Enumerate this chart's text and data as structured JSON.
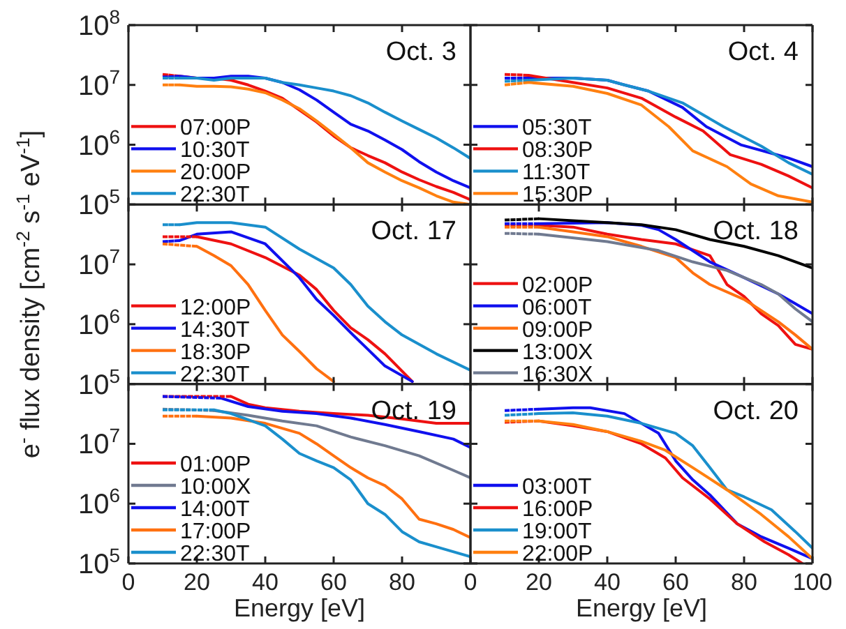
{
  "chart_data": [
    {
      "type": "line",
      "title": "Oct. 3",
      "log": "y",
      "xlim": [
        0,
        100
      ],
      "ylim": [
        100000,
        100000000
      ],
      "xticks": [
        0,
        20,
        40,
        60,
        80
      ],
      "yticks": [
        {
          "value": 100000,
          "label": "10$^{5}$"
        },
        {
          "value": 1000000,
          "label": "10$^{6}$"
        },
        {
          "value": 10000000,
          "label": "10$^{7}$"
        },
        {
          "value": 100000000,
          "label": "10$^{8}$"
        }
      ],
      "tick_labels": "y",
      "legend": "bottom left",
      "line_style": "solid",
      "series": [
        {
          "name": "07:00P",
          "color": "#ee1111",
          "x": [
            15,
            20,
            25,
            30,
            35,
            40,
            45,
            50,
            55,
            60,
            65,
            70,
            75,
            80,
            85,
            90,
            95,
            100
          ],
          "values": [
            14000000.0,
            13000000.0,
            13000000.0,
            12000000.0,
            10000000.0,
            7900000.0,
            6000000.0,
            3800000.0,
            2400000.0,
            1400000.0,
            890000.0,
            660000.0,
            500000.0,
            350000.0,
            260000.0,
            200000.0,
            160000.0,
            120000.0
          ]
        },
        {
          "name": "10:30T",
          "color": "#1010ee",
          "x": [
            15,
            20,
            25,
            30,
            35,
            40,
            45,
            50,
            55,
            60,
            65,
            70,
            75,
            80,
            85,
            90,
            95,
            100
          ],
          "values": [
            14000000.0,
            13000000.0,
            13000000.0,
            14000000.0,
            14000000.0,
            13000000.0,
            11000000.0,
            8300000.0,
            5600000.0,
            3500000.0,
            2200000.0,
            1700000.0,
            1200000.0,
            830000.0,
            520000.0,
            350000.0,
            250000.0,
            190000.0
          ]
        },
        {
          "name": "20:00P",
          "color": "#ff8010",
          "x": [
            15,
            20,
            25,
            30,
            35,
            40,
            45,
            50,
            55,
            60,
            65,
            70,
            75,
            80,
            85,
            90,
            95,
            100
          ],
          "values": [
            10000000.0,
            9500000.0,
            9500000.0,
            9300000.0,
            8500000.0,
            7400000.0,
            5600000.0,
            4000000.0,
            2500000.0,
            1500000.0,
            890000.0,
            500000.0,
            350000.0,
            250000.0,
            190000.0,
            140000.0,
            110000.0,
            100000.0
          ]
        },
        {
          "name": "22:30T",
          "color": "#1a8fcc",
          "x": [
            15,
            20,
            25,
            30,
            35,
            40,
            45,
            50,
            55,
            60,
            65,
            70,
            75,
            80,
            85,
            90,
            95,
            100
          ],
          "values": [
            13000000.0,
            13000000.0,
            12000000.0,
            13000000.0,
            13000000.0,
            13000000.0,
            11000000.0,
            10000000.0,
            8900000.0,
            7900000.0,
            6600000.0,
            5000000.0,
            3500000.0,
            2500000.0,
            1800000.0,
            1300000.0,
            890000.0,
            590000.0
          ]
        },
        {
          "color": "#ee1111",
          "line_style": "dotted",
          "x": [
            10,
            15
          ],
          "values": [
            15000000.0,
            14000000.0
          ]
        },
        {
          "color": "#1010ee",
          "line_style": "dotted",
          "x": [
            10,
            15
          ],
          "values": [
            13500000.0,
            14000000.0
          ]
        },
        {
          "color": "#ff8010",
          "line_style": "dotted",
          "x": [
            10,
            15
          ],
          "values": [
            10000000.0,
            10000000.0
          ]
        },
        {
          "color": "#1a8fcc",
          "line_style": "dotted",
          "x": [
            10,
            15
          ],
          "values": [
            13000000.0,
            13000000.0
          ]
        }
      ]
    },
    {
      "type": "line",
      "title": "Oct. 4",
      "log": "y",
      "xlim": [
        0,
        100
      ],
      "ylim": [
        100000,
        100000000
      ],
      "xticks": [
        20,
        40,
        60,
        80,
        100
      ],
      "yticks": [
        {
          "value": 100000,
          "label": null
        },
        {
          "value": 1000000,
          "label": null
        },
        {
          "value": 10000000,
          "label": null
        },
        {
          "value": 100000000,
          "label": null
        }
      ],
      "tick_labels": false,
      "legend": "bottom left",
      "line_style": "solid",
      "series": [
        {
          "name": "05:30T",
          "color": "#1010ee",
          "x": [
            17,
            30,
            40,
            45,
            52,
            62,
            69,
            79,
            88,
            93,
            100
          ],
          "values": [
            13000000.0,
            13000000.0,
            12000000.0,
            10000000.0,
            7900000.0,
            4200000.0,
            2000000.0,
            1000000.0,
            720000.0,
            600000.0,
            430000.0
          ]
        },
        {
          "name": "08:30P",
          "color": "#ee1111",
          "x": [
            17,
            30,
            40,
            50,
            60,
            68,
            76,
            85,
            93,
            100
          ],
          "values": [
            14500000.0,
            11000000.0,
            8900000.0,
            6000000.0,
            2900000.0,
            1700000.0,
            680000.0,
            470000.0,
            300000.0,
            190000.0
          ]
        },
        {
          "name": "11:30T",
          "color": "#1a8fcc",
          "x": [
            17,
            30,
            40,
            45,
            52,
            62,
            74,
            85,
            93,
            100
          ],
          "values": [
            12000000.0,
            13000000.0,
            12000000.0,
            10000000.0,
            7900000.0,
            5000000.0,
            2000000.0,
            950000.0,
            500000.0,
            320000.0
          ]
        },
        {
          "name": "15:30P",
          "color": "#ff8010",
          "x": [
            17,
            30,
            40,
            50,
            58,
            65,
            75,
            82,
            90,
            100
          ],
          "values": [
            11000000.0,
            9500000.0,
            7200000.0,
            4600000.0,
            2000000.0,
            790000.0,
            430000.0,
            220000.0,
            140000.0,
            110000.0
          ]
        },
        {
          "color": "#1010ee",
          "line_style": "dotted",
          "x": [
            10,
            17
          ],
          "values": [
            13000000.0,
            13000000.0
          ]
        },
        {
          "color": "#ee1111",
          "line_style": "dotted",
          "x": [
            10,
            17
          ],
          "values": [
            15000000.0,
            14500000.0
          ]
        },
        {
          "color": "#1a8fcc",
          "line_style": "dotted",
          "x": [
            10,
            17
          ],
          "values": [
            11500000.0,
            12000000.0
          ]
        },
        {
          "color": "#ff8010",
          "line_style": "dotted",
          "x": [
            10,
            17
          ],
          "values": [
            10000000.0,
            11000000.0
          ]
        }
      ]
    },
    {
      "type": "line",
      "title": "Oct. 17",
      "ylabel": "e$^{-}$ flux density [cm$^{-2}$ s$^{-1}$ eV$^{-1}$]",
      "log": "y",
      "xlim": [
        0,
        100
      ],
      "ylim": [
        100000,
        100000000
      ],
      "xticks": [
        0,
        20,
        40,
        60,
        80
      ],
      "yticks": [
        {
          "value": 100000,
          "label": "10$^{5}$"
        },
        {
          "value": 1000000,
          "label": "10$^{6}$"
        },
        {
          "value": 10000000,
          "label": "10$^{7}$"
        },
        {
          "value": 100000000,
          "label": null
        }
      ],
      "tick_labels": "y",
      "legend": "bottom left",
      "line_style": "solid",
      "series": [
        {
          "name": "12:00P",
          "color": "#ee1111",
          "x": [
            20,
            30,
            40,
            50,
            55,
            60,
            65,
            70,
            75,
            83
          ],
          "values": [
            29000000.0,
            22000000.0,
            13000000.0,
            6600000.0,
            3800000.0,
            1700000.0,
            870000.0,
            550000.0,
            320000.0,
            110000.0
          ]
        },
        {
          "name": "14:30T",
          "color": "#1010ee",
          "x": [
            15,
            20,
            30,
            40,
            50,
            55,
            60,
            65,
            70,
            75,
            83
          ],
          "values": [
            25000000.0,
            32000000.0,
            35000000.0,
            22000000.0,
            6000000.0,
            2600000.0,
            1400000.0,
            720000.0,
            380000.0,
            200000.0,
            110000.0
          ]
        },
        {
          "name": "18:30P",
          "color": "#ff7010",
          "x": [
            20,
            25,
            30,
            35,
            40,
            45,
            50,
            55,
            60
          ],
          "values": [
            20000000.0,
            14000000.0,
            9500000.0,
            4600000.0,
            1700000.0,
            660000.0,
            350000.0,
            180000.0,
            110000.0
          ]
        },
        {
          "name": "22:30T",
          "color": "#1a8fcc",
          "x": [
            15,
            20,
            30,
            40,
            50,
            60,
            65,
            70,
            75,
            80,
            90,
            100
          ],
          "values": [
            46000000.0,
            50000000.0,
            50000000.0,
            42000000.0,
            18000000.0,
            8700000.0,
            4600000.0,
            2000000.0,
            1100000.0,
            660000.0,
            320000.0,
            170000.0
          ]
        },
        {
          "color": "#ee1111",
          "line_style": "dotted",
          "x": [
            10,
            20
          ],
          "values": [
            29000000.0,
            29000000.0
          ]
        },
        {
          "color": "#1010ee",
          "line_style": "dotted",
          "x": [
            10,
            15
          ],
          "values": [
            24000000.0,
            25000000.0
          ]
        },
        {
          "color": "#ff7010",
          "line_style": "dotted",
          "x": [
            10,
            20
          ],
          "values": [
            22000000.0,
            20000000.0
          ]
        },
        {
          "color": "#1a8fcc",
          "line_style": "dotted",
          "x": [
            10,
            15
          ],
          "values": [
            46000000.0,
            46000000.0
          ]
        }
      ]
    },
    {
      "type": "line",
      "title": "Oct. 18",
      "log": "y",
      "xlim": [
        0,
        100
      ],
      "ylim": [
        100000,
        100000000
      ],
      "xticks": [
        20,
        40,
        60,
        80,
        100
      ],
      "yticks": [
        {
          "value": 100000,
          "label": null
        },
        {
          "value": 1000000,
          "label": null
        },
        {
          "value": 10000000,
          "label": null
        },
        {
          "value": 100000000,
          "label": null
        }
      ],
      "tick_labels": false,
      "legend": "bottom left",
      "line_style": "solid",
      "series": [
        {
          "name": "02:00P",
          "color": "#ee1111",
          "x": [
            20,
            30,
            40,
            50,
            60,
            70,
            75,
            80,
            85,
            90,
            95,
            100
          ],
          "values": [
            45000000.0,
            42000000.0,
            32000000.0,
            26000000.0,
            22000000.0,
            14000000.0,
            4600000.0,
            2900000.0,
            1500000.0,
            950000.0,
            460000.0,
            380000.0
          ]
        },
        {
          "name": "06:00T",
          "color": "#1010ee",
          "x": [
            20,
            40,
            50,
            55,
            60,
            70,
            80,
            90,
            95,
            100
          ],
          "values": [
            48000000.0,
            50000000.0,
            45000000.0,
            38000000.0,
            26000000.0,
            11000000.0,
            6000000.0,
            3200000.0,
            2200000.0,
            1500000.0
          ]
        },
        {
          "name": "09:00P",
          "color": "#ff7010",
          "x": [
            20,
            30,
            40,
            50,
            60,
            65,
            70,
            80,
            90,
            95,
            100
          ],
          "values": [
            42000000.0,
            35000000.0,
            29000000.0,
            20000000.0,
            13000000.0,
            7200000.0,
            4600000.0,
            2600000.0,
            1100000.0,
            660000.0,
            380000.0
          ]
        },
        {
          "name": "13:00X",
          "color": "#000000",
          "x": [
            20,
            40,
            50,
            60,
            70,
            80,
            90,
            100
          ],
          "values": [
            58000000.0,
            50000000.0,
            46000000.0,
            38000000.0,
            26000000.0,
            20000000.0,
            14000000.0,
            8700000.0
          ]
        },
        {
          "name": "16:30X",
          "color": "#707a90",
          "x": [
            20,
            40,
            55,
            65,
            75,
            85,
            90,
            95,
            100
          ],
          "values": [
            32000000.0,
            24000000.0,
            17000000.0,
            11000000.0,
            7900000.0,
            4600000.0,
            3200000.0,
            1800000.0,
            1100000.0
          ]
        },
        {
          "color": "#ee1111",
          "line_style": "dotted",
          "x": [
            10,
            20
          ],
          "values": [
            45000000.0,
            45000000.0
          ]
        },
        {
          "color": "#1010ee",
          "line_style": "dotted",
          "x": [
            10,
            20
          ],
          "values": [
            48000000.0,
            48000000.0
          ]
        },
        {
          "color": "#ff7010",
          "line_style": "dotted",
          "x": [
            10,
            20
          ],
          "values": [
            42000000.0,
            42000000.0
          ]
        },
        {
          "color": "#000000",
          "line_style": "dotted",
          "x": [
            10,
            20
          ],
          "values": [
            55000000.0,
            58000000.0
          ]
        },
        {
          "color": "#707a90",
          "line_style": "dotted",
          "x": [
            10,
            20
          ],
          "values": [
            33000000.0,
            32000000.0
          ]
        }
      ]
    },
    {
      "type": "line",
      "title": "Oct. 19",
      "xlabel": "Energy [eV]",
      "log": "y",
      "xlim": [
        0,
        100
      ],
      "ylim": [
        100000,
        100000000
      ],
      "xticks": [
        0,
        20,
        40,
        60,
        80
      ],
      "yticks": [
        {
          "value": 100000,
          "label": "10$^{5}$"
        },
        {
          "value": 1000000,
          "label": "10$^{6}$"
        },
        {
          "value": 10000000,
          "label": "10$^{7}$"
        },
        {
          "value": 100000000,
          "label": null
        }
      ],
      "legend": "bottom left",
      "line_style": "solid",
      "series": [
        {
          "name": "01:00P",
          "color": "#ee1111",
          "x": [
            30,
            35,
            40,
            50,
            60,
            70,
            80,
            90,
            100
          ],
          "values": [
            62000000.0,
            46000000.0,
            40000000.0,
            35000000.0,
            32000000.0,
            30000000.0,
            26000000.0,
            22000000.0,
            22000000.0
          ]
        },
        {
          "name": "10:00X",
          "color": "#707a90",
          "x": [
            25,
            35,
            45,
            55,
            65,
            75,
            85,
            95,
            100
          ],
          "values": [
            36000000.0,
            30000000.0,
            24000000.0,
            20000000.0,
            13000000.0,
            9300000.0,
            6300000.0,
            3600000.0,
            2700000.0
          ]
        },
        {
          "name": "14:00T",
          "color": "#1010ee",
          "x": [
            27,
            35,
            45,
            55,
            65,
            75,
            85,
            95,
            100
          ],
          "values": [
            58000000.0,
            42000000.0,
            35000000.0,
            32000000.0,
            27000000.0,
            21000000.0,
            16000000.0,
            12000000.0,
            8700000.0
          ]
        },
        {
          "name": "17:00P",
          "color": "#ff7010",
          "x": [
            20,
            30,
            40,
            50,
            55,
            60,
            65,
            70,
            75,
            80,
            85,
            90,
            95,
            100
          ],
          "values": [
            29000000.0,
            27000000.0,
            22000000.0,
            15000000.0,
            10000000.0,
            6300000.0,
            4000000.0,
            2700000.0,
            2000000.0,
            1200000.0,
            550000.0,
            460000.0,
            370000.0,
            270000.0
          ]
        },
        {
          "name": "22:30T",
          "color": "#1a8fcc",
          "x": [
            25,
            30,
            40,
            45,
            50,
            55,
            60,
            65,
            70,
            75,
            80,
            85,
            90,
            100
          ],
          "values": [
            37000000.0,
            32000000.0,
            20000000.0,
            12000000.0,
            6900000.0,
            5200000.0,
            4000000.0,
            2500000.0,
            1000000.0,
            660000.0,
            340000.0,
            230000.0,
            190000.0,
            130000.0
          ]
        },
        {
          "color": "#ee1111",
          "line_style": "dotted",
          "x": [
            10,
            30
          ],
          "values": [
            62000000.0,
            62000000.0
          ]
        },
        {
          "color": "#707a90",
          "line_style": "dotted",
          "x": [
            10,
            25
          ],
          "values": [
            38000000.0,
            36000000.0
          ]
        },
        {
          "color": "#1010ee",
          "line_style": "dotted",
          "x": [
            10,
            27
          ],
          "values": [
            62000000.0,
            58000000.0
          ]
        },
        {
          "color": "#ff7010",
          "line_style": "dotted",
          "x": [
            10,
            20
          ],
          "values": [
            29000000.0,
            29000000.0
          ]
        },
        {
          "color": "#1a8fcc",
          "line_style": "dotted",
          "x": [
            10,
            25
          ],
          "values": [
            37000000.0,
            37000000.0
          ]
        }
      ]
    },
    {
      "type": "line",
      "title": "Oct. 20",
      "xlabel": "Energy [eV]",
      "log": "y",
      "xlim": [
        0,
        100
      ],
      "ylim": [
        100000,
        100000000
      ],
      "xticks": [
        0,
        20,
        40,
        60,
        80,
        100
      ],
      "yticks": [
        {
          "value": 100000,
          "label": null
        },
        {
          "value": 1000000,
          "label": null
        },
        {
          "value": 10000000,
          "label": null
        },
        {
          "value": 100000000,
          "label": null
        }
      ],
      "tick_labels": "x",
      "legend": "bottom left",
      "line_style": "solid",
      "series": [
        {
          "name": "03:00T",
          "color": "#1010ee",
          "x": [
            20,
            30,
            35,
            45,
            55,
            60,
            65,
            70,
            78,
            85,
            93,
            100
          ],
          "values": [
            38000000.0,
            40000000.0,
            40000000.0,
            32000000.0,
            15000000.0,
            5200000.0,
            2500000.0,
            1400000.0,
            460000.0,
            280000.0,
            180000.0,
            120000.0
          ]
        },
        {
          "name": "16:00P",
          "color": "#ee1111",
          "x": [
            20,
            30,
            40,
            50,
            57,
            62,
            70,
            78,
            86,
            93,
            97
          ],
          "values": [
            24000000.0,
            20000000.0,
            16000000.0,
            10000000.0,
            5800000.0,
            2700000.0,
            1200000.0,
            460000.0,
            230000.0,
            140000.0,
            100000.0
          ]
        },
        {
          "name": "19:00T",
          "color": "#1a8fcc",
          "x": [
            20,
            30,
            40,
            50,
            60,
            65,
            70,
            75,
            80,
            88,
            95,
            100
          ],
          "values": [
            32000000.0,
            33000000.0,
            29000000.0,
            22000000.0,
            15000000.0,
            9300000.0,
            4000000.0,
            1700000.0,
            1300000.0,
            790000.0,
            340000.0,
            180000.0
          ]
        },
        {
          "name": "22:00P",
          "color": "#ff8010",
          "x": [
            20,
            30,
            40,
            50,
            57,
            65,
            75,
            85,
            93,
            100
          ],
          "values": [
            24000000.0,
            21000000.0,
            16000000.0,
            11000000.0,
            7800000.0,
            4000000.0,
            1700000.0,
            660000.0,
            280000.0,
            120000.0
          ]
        },
        {
          "color": "#1010ee",
          "line_style": "dotted",
          "x": [
            10,
            20
          ],
          "values": [
            36000000.0,
            38000000.0
          ]
        },
        {
          "color": "#ee1111",
          "line_style": "dotted",
          "x": [
            10,
            20
          ],
          "values": [
            23000000.0,
            24000000.0
          ]
        },
        {
          "color": "#1a8fcc",
          "line_style": "dotted",
          "x": [
            10,
            20
          ],
          "values": [
            30000000.0,
            32000000.0
          ]
        },
        {
          "color": "#ff8010",
          "line_style": "dotted",
          "x": [
            10,
            20
          ],
          "values": [
            24000000.0,
            24000000.0
          ]
        }
      ]
    }
  ]
}
